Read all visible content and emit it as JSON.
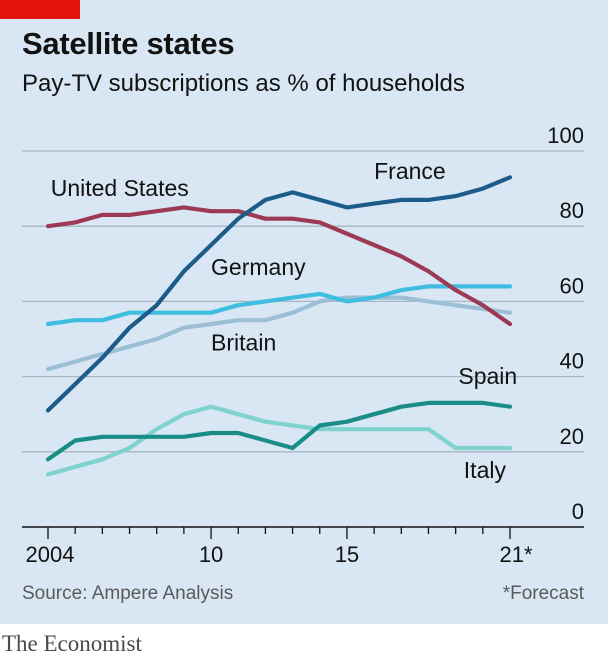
{
  "header": {
    "title": "Satellite states",
    "subtitle": "Pay-TV subscriptions as % of households"
  },
  "footer": {
    "source": "Source: Ampere Analysis",
    "footnote": "*Forecast",
    "brand": "The Economist"
  },
  "colors": {
    "background": "#d8e7f3",
    "brand_red": "#e3120b",
    "france": "#1d5c8a",
    "united_states": "#9c3a55",
    "germany": "#3ebde0",
    "britain": "#9cbfd6",
    "spain": "#1a8e86",
    "italy": "#7fd3cc"
  },
  "chart_data": {
    "type": "line",
    "title": "Satellite states",
    "subtitle": "Pay-TV subscriptions as % of households",
    "xlabel": "",
    "ylabel": "",
    "ylim": [
      0,
      100
    ],
    "xlim": [
      2004,
      2021
    ],
    "y_ticks": [
      0,
      20,
      40,
      60,
      80,
      100
    ],
    "x_ticks": [
      2004,
      2010,
      2015,
      2021
    ],
    "x_tick_labels": [
      "2004",
      "10",
      "15",
      "21*"
    ],
    "y_axis_position": "right",
    "grid": true,
    "legend": "direct labels",
    "x": [
      2004,
      2005,
      2006,
      2007,
      2008,
      2009,
      2010,
      2011,
      2012,
      2013,
      2014,
      2015,
      2016,
      2017,
      2018,
      2019,
      2020,
      2021
    ],
    "series": [
      {
        "name": "France",
        "color": "#1d5c8a",
        "values": [
          31,
          38,
          45,
          53,
          59,
          68,
          75,
          82,
          87,
          89,
          87,
          85,
          86,
          87,
          87,
          88,
          90,
          93
        ]
      },
      {
        "name": "United States",
        "color": "#9c3a55",
        "values": [
          80,
          81,
          83,
          83,
          84,
          85,
          84,
          84,
          82,
          82,
          81,
          78,
          75,
          72,
          68,
          63,
          59,
          54
        ]
      },
      {
        "name": "Germany",
        "color": "#3ebde0",
        "values": [
          54,
          55,
          55,
          57,
          57,
          57,
          57,
          59,
          60,
          61,
          62,
          60,
          61,
          63,
          64,
          64,
          64,
          64
        ]
      },
      {
        "name": "Britain",
        "color": "#9cbfd6",
        "values": [
          42,
          44,
          46,
          48,
          50,
          53,
          54,
          55,
          55,
          57,
          60,
          61,
          61,
          61,
          60,
          59,
          58,
          57
        ]
      },
      {
        "name": "Spain",
        "color": "#1a8e86",
        "values": [
          18,
          23,
          24,
          24,
          24,
          24,
          25,
          25,
          23,
          21,
          27,
          28,
          30,
          32,
          33,
          33,
          33,
          32
        ]
      },
      {
        "name": "Italy",
        "color": "#7fd3cc",
        "values": [
          14,
          16,
          18,
          21,
          26,
          30,
          32,
          30,
          28,
          27,
          26,
          26,
          26,
          26,
          26,
          21,
          21,
          21
        ]
      }
    ],
    "label_positions": {
      "France": {
        "x": 2016,
        "y": 92.5
      },
      "United States": {
        "x": 2004.1,
        "y": 88
      },
      "Germany": {
        "x": 2010,
        "y": 67
      },
      "Britain": {
        "x": 2010,
        "y": 47
      },
      "Spain": {
        "x": 2019.1,
        "y": 38
      },
      "Italy": {
        "x": 2019.3,
        "y": 13
      }
    }
  }
}
